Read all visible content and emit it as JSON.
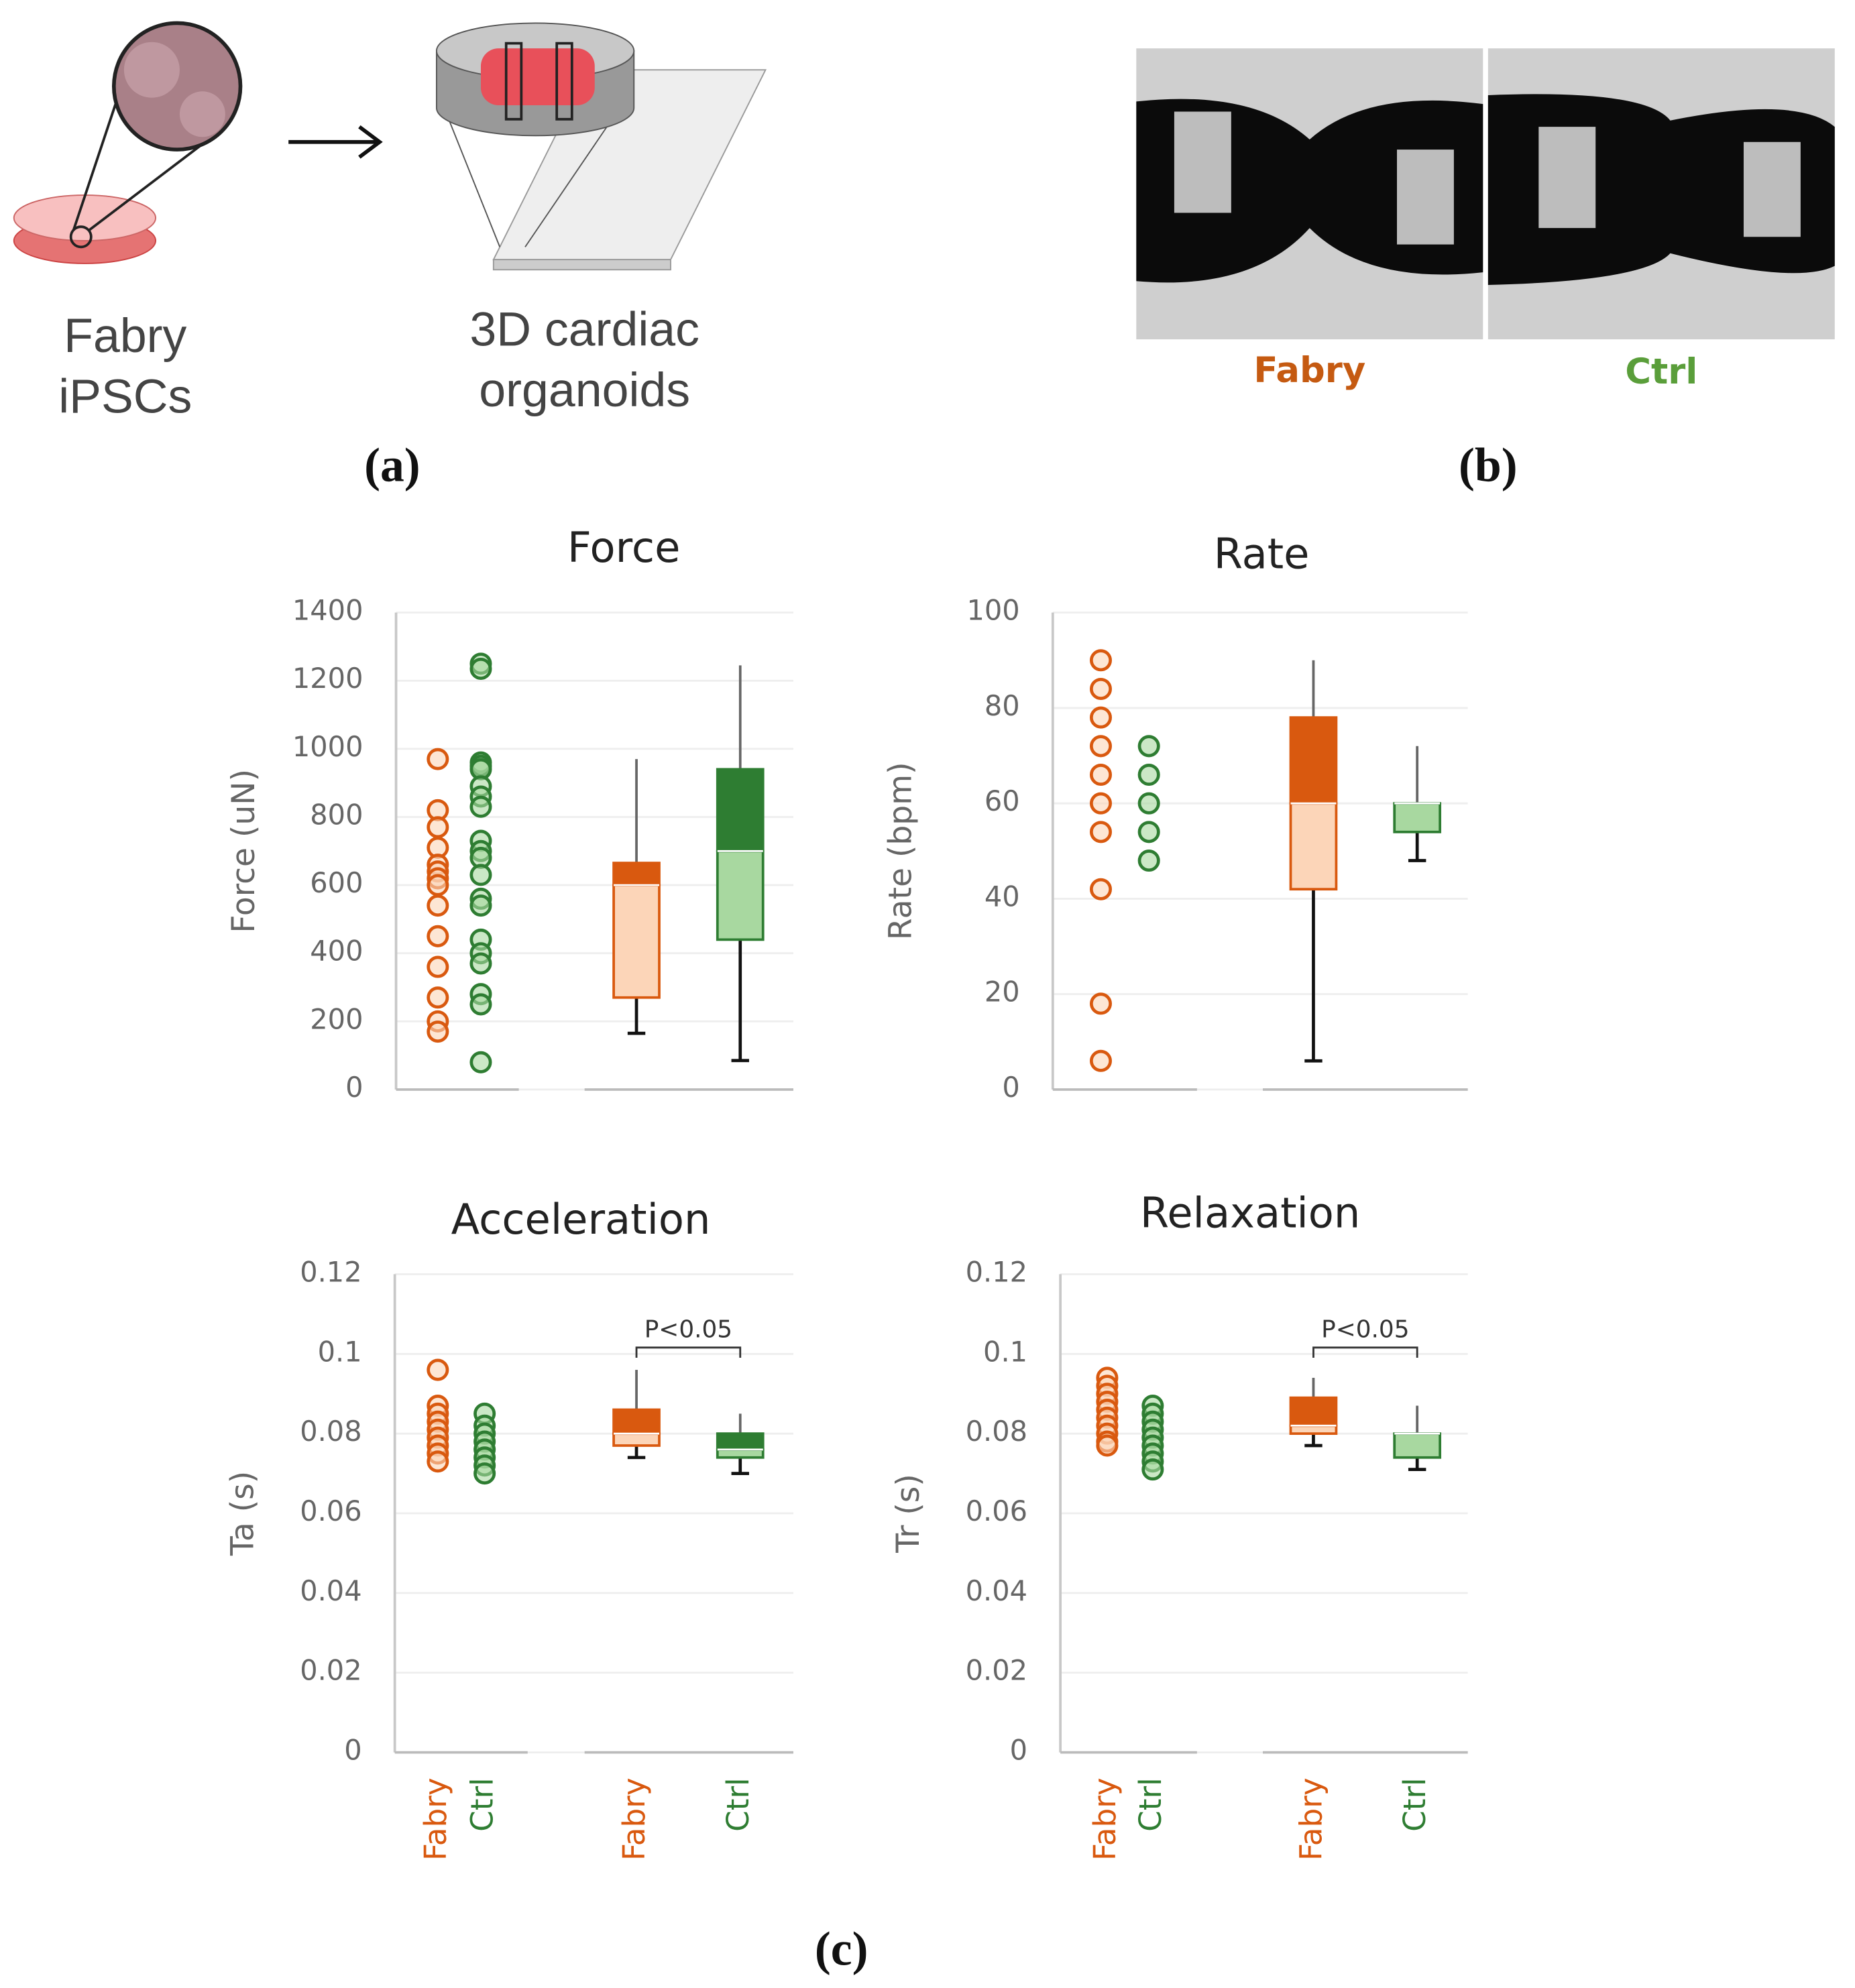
{
  "figure": {
    "panel_a": {
      "label": "(a)",
      "captions": [
        [
          "Fabry",
          "iPSCs"
        ],
        [
          "3D cardiac",
          "organoids"
        ]
      ]
    },
    "panel_b": {
      "label": "(b)",
      "captions": [
        "Fabry",
        "Ctrl"
      ]
    },
    "panel_c": {
      "label": "(c)"
    }
  },
  "chart_data": [
    {
      "type": "boxstrip",
      "title": "Force",
      "y_label": "Force (uN)",
      "ylim": [
        0,
        1400
      ],
      "yticks": [
        0,
        200,
        400,
        600,
        800,
        1000,
        1200,
        1400
      ],
      "grid": true,
      "series": [
        {
          "color": "#d9590f",
          "light_color": "#fcd5b8",
          "values": [
            970,
            820,
            770,
            710,
            660,
            640,
            620,
            600,
            540,
            450,
            360,
            270,
            200,
            170
          ],
          "box": {
            "min": 165,
            "q1": 270,
            "median": 600,
            "q3": 665,
            "max": 970
          }
        },
        {
          "color": "#2e7d32",
          "light_color": "#a8d8a0",
          "values": [
            1250,
            1235,
            960,
            950,
            940,
            890,
            860,
            830,
            730,
            700,
            680,
            630,
            560,
            540,
            440,
            400,
            370,
            280,
            250,
            80
          ],
          "box": {
            "min": 85,
            "q1": 440,
            "median": 700,
            "q3": 940,
            "max": 1245
          }
        }
      ]
    },
    {
      "type": "boxstrip",
      "title": "Rate",
      "y_label": "Rate (bpm)",
      "ylim": [
        0,
        100
      ],
      "yticks": [
        0,
        20,
        40,
        60,
        80,
        100
      ],
      "grid": true,
      "series": [
        {
          "color": "#d9590f",
          "light_color": "#fcd5b8",
          "values": [
            90,
            84,
            78,
            72,
            66,
            60,
            54,
            42,
            18,
            6
          ],
          "box": {
            "min": 6,
            "q1": 42,
            "median": 60,
            "q3": 78,
            "max": 90
          }
        },
        {
          "color": "#2e7d32",
          "light_color": "#a8d8a0",
          "values": [
            72,
            66,
            60,
            54,
            48
          ],
          "box": {
            "min": 48,
            "q1": 54,
            "median": 60,
            "q3": 60,
            "max": 72
          }
        }
      ]
    },
    {
      "type": "boxstrip",
      "title": "Acceleration",
      "y_label": "Ta (s)",
      "ylim": [
        0,
        0.12
      ],
      "yticks": [
        0,
        0.02,
        0.04,
        0.06,
        0.08,
        0.1,
        0.12
      ],
      "grid": true,
      "categories": [
        "Fabry",
        "Ctrl"
      ],
      "annotation": "P<0.05",
      "series": [
        {
          "color": "#d9590f",
          "light_color": "#fcd5b8",
          "values": [
            0.096,
            0.087,
            0.085,
            0.083,
            0.081,
            0.079,
            0.077,
            0.075,
            0.073
          ],
          "box": {
            "min": 0.074,
            "q1": 0.077,
            "median": 0.08,
            "q3": 0.086,
            "max": 0.096
          }
        },
        {
          "color": "#2e7d32",
          "light_color": "#a8d8a0",
          "values": [
            0.085,
            0.082,
            0.08,
            0.078,
            0.076,
            0.074,
            0.072,
            0.07
          ],
          "box": {
            "min": 0.07,
            "q1": 0.074,
            "median": 0.076,
            "q3": 0.08,
            "max": 0.085
          }
        }
      ]
    },
    {
      "type": "boxstrip",
      "title": "Relaxation",
      "y_label": "Tr (s)",
      "ylim": [
        0,
        0.12
      ],
      "yticks": [
        0,
        0.02,
        0.04,
        0.06,
        0.08,
        0.1,
        0.12
      ],
      "grid": true,
      "categories": [
        "Fabry",
        "Ctrl"
      ],
      "annotation": "P<0.05",
      "series": [
        {
          "color": "#d9590f",
          "light_color": "#fcd5b8",
          "values": [
            0.094,
            0.092,
            0.09,
            0.088,
            0.086,
            0.084,
            0.082,
            0.08,
            0.078,
            0.077
          ],
          "box": {
            "min": 0.077,
            "q1": 0.08,
            "median": 0.082,
            "q3": 0.089,
            "max": 0.094
          }
        },
        {
          "color": "#2e7d32",
          "light_color": "#a8d8a0",
          "values": [
            0.087,
            0.085,
            0.083,
            0.081,
            0.079,
            0.077,
            0.075,
            0.073,
            0.071
          ],
          "box": {
            "min": 0.071,
            "q1": 0.074,
            "median": 0.08,
            "q3": 0.08,
            "max": 0.087
          }
        }
      ]
    }
  ]
}
